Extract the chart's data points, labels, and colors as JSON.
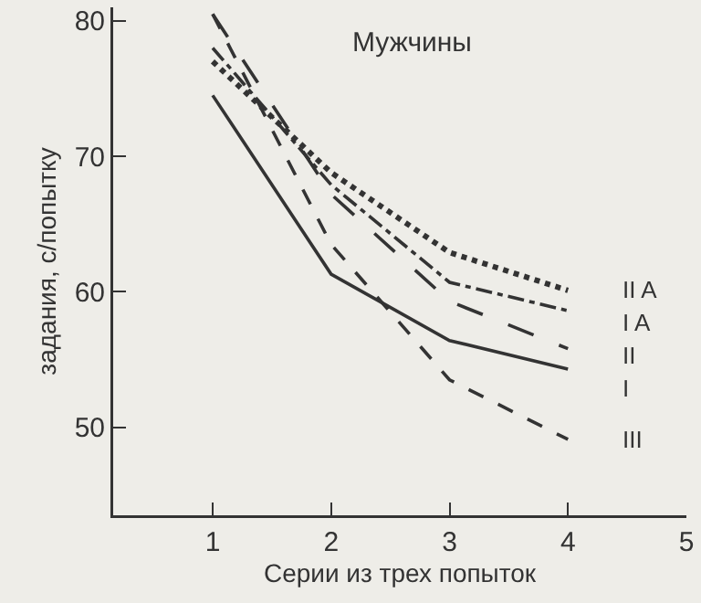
{
  "chart_data": {
    "type": "line",
    "ylabel": "задания, с/попытку",
    "xlabel": "Серии из трех попыток",
    "x": [
      1,
      2,
      3,
      4
    ],
    "series": [
      {
        "name": "I",
        "color": "#333333",
        "line_style": "solid",
        "values": [
          74.5,
          61.3,
          56.4,
          54.3
        ]
      },
      {
        "name": "II",
        "color": "#333333",
        "line_style": "longdash",
        "values": [
          80.5,
          67.2,
          59.3,
          55.8
        ]
      },
      {
        "name": "I A",
        "color": "#333333",
        "line_style": "dashdot",
        "values": [
          78,
          67.9,
          60.7,
          58.6
        ]
      },
      {
        "name": "II A",
        "color": "#333333",
        "line_style": "dotted",
        "values": [
          77,
          68.8,
          62.9,
          60.1
        ]
      },
      {
        "name": "III",
        "color": "#333333",
        "line_style": "dashed",
        "values": [
          80.5,
          63.5,
          53.5,
          49.1
        ]
      }
    ],
    "annotations": [
      "Мужчины"
    ],
    "xlim": [
      0.16,
      5
    ],
    "xticks": [
      1,
      2,
      3,
      4,
      5
    ],
    "ylim": [
      43.5,
      81
    ],
    "yticks": [
      50,
      60,
      70,
      80
    ],
    "grid": false,
    "legend": false,
    "marker": "none"
  }
}
